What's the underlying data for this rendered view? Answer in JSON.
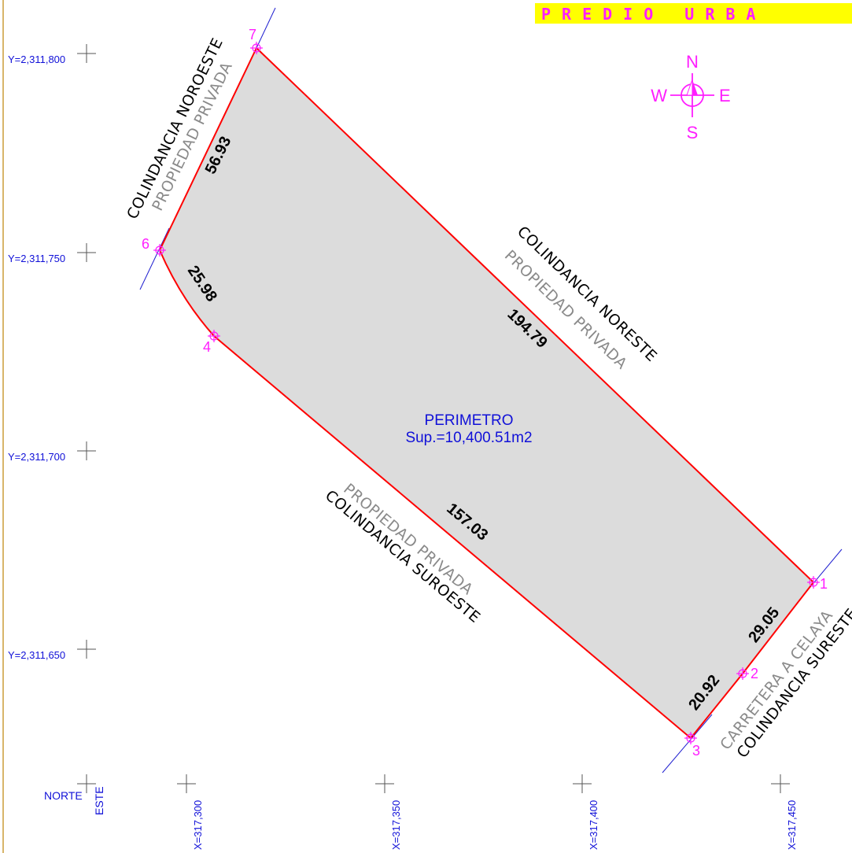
{
  "title": "PREDIO URBA",
  "grid": {
    "y_labels": [
      "Y=2,311,800",
      "Y=2,311,750",
      "Y=2,311,700",
      "Y=2,311,650"
    ],
    "x_labels": [
      "X=317,300",
      "X=317,350",
      "X=317,400",
      "X=317,450"
    ],
    "norte": "NORTE",
    "este": "ESTE"
  },
  "vertices": [
    "7",
    "6",
    "4",
    "3",
    "2",
    "1"
  ],
  "dimensions": {
    "side_7_6": "56.93",
    "side_6_4": "25.98",
    "side_7_1": "194.79",
    "side_4_3": "157.03",
    "side_2_1": "29.05",
    "side_3_2": "20.92"
  },
  "adjacencies": {
    "noroeste": {
      "name": "COLINDANCIA NOROESTE",
      "owner": "PROPIEDAD PRIVADA"
    },
    "noreste": {
      "name": "COLINDANCIA NORESTE",
      "owner": "PROPIEDAD PRIVADA"
    },
    "suroeste": {
      "name": "COLINDANCIA SUROESTE",
      "owner": "PROPIEDAD PRIVADA"
    },
    "sureste": {
      "name": "COLINDANCIA SURESTE",
      "owner": "CARRETERA A CELAYA"
    }
  },
  "area": {
    "label": "PERIMETRO",
    "surface": "Sup.=10,400.51m2"
  },
  "compass": {
    "n": "N",
    "s": "S",
    "e": "E",
    "w": "W"
  },
  "colors": {
    "boundary": "#ff0000",
    "fill": "#dcdcdc",
    "grid_text": "#1010d8",
    "vertex": "#ff1eff",
    "title_bg": "#ffff00"
  }
}
